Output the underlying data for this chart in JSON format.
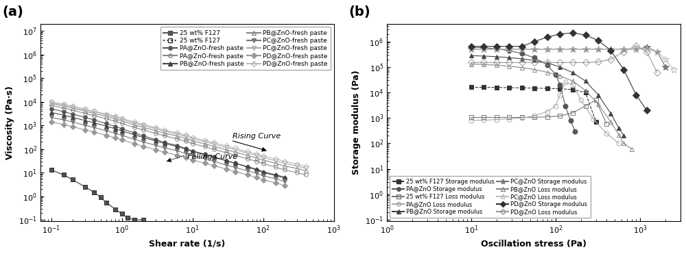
{
  "fig_width": 10.0,
  "fig_height": 3.71,
  "background_color": "#ffffff",
  "panel_a": {
    "xlabel": "Shear rate (1/s)",
    "ylabel": "Viscosity (Pa·s)",
    "xlim": [
      0.07,
      1000
    ],
    "ylim": [
      0.09,
      20000000.0
    ],
    "series": [
      {
        "label": "25 wt% F127 falling",
        "marker": "s",
        "filled": true,
        "linestyle": "-",
        "color": "#555555",
        "x": [
          0.1,
          0.15,
          0.2,
          0.3,
          0.4,
          0.5,
          0.6,
          0.8,
          1.0,
          1.2,
          1.5,
          2.0
        ],
        "y": [
          13,
          8,
          5,
          2.5,
          1.5,
          0.9,
          0.55,
          0.28,
          0.18,
          0.12,
          0.1,
          0.1
        ]
      },
      {
        "label": "25 wt% F127 rising",
        "marker": "s",
        "filled": false,
        "linestyle": ":",
        "color": "#333333",
        "x": [
          0.1,
          0.15,
          0.2,
          0.3,
          0.4,
          0.5,
          0.6,
          0.8,
          1.0,
          1.2,
          1.5,
          2.0
        ],
        "y": [
          13,
          8,
          5,
          2.5,
          1.5,
          0.9,
          0.55,
          0.28,
          0.18,
          0.12,
          0.1,
          0.1
        ]
      },
      {
        "label": "PA@ZnO-fresh paste falling",
        "marker": "o",
        "filled": true,
        "linestyle": "-",
        "color": "#555555",
        "x": [
          0.1,
          0.15,
          0.2,
          0.3,
          0.4,
          0.6,
          0.8,
          1.0,
          1.5,
          2.0,
          3.0,
          4.0,
          6.0,
          8.0,
          10,
          15,
          20,
          30,
          40,
          60,
          80,
          100,
          150,
          200
        ],
        "y": [
          5000,
          3800,
          3000,
          2200,
          1700,
          1200,
          900,
          720,
          480,
          360,
          250,
          190,
          140,
          105,
          82,
          60,
          46,
          32,
          25,
          17,
          13,
          10,
          7.5,
          5.8
        ]
      },
      {
        "label": "PA@ZnO-fresh paste rising",
        "marker": "o",
        "filled": false,
        "linestyle": "-",
        "color": "#888888",
        "x": [
          0.1,
          0.15,
          0.2,
          0.3,
          0.4,
          0.6,
          0.8,
          1.0,
          1.5,
          2.0,
          3.0,
          4.0,
          6.0,
          8.0,
          10,
          15,
          20,
          30,
          40,
          60,
          80,
          100,
          150,
          200,
          300,
          400
        ],
        "y": [
          7000,
          5500,
          4400,
          3200,
          2600,
          1900,
          1500,
          1200,
          820,
          640,
          460,
          360,
          270,
          210,
          168,
          124,
          97,
          69,
          54,
          38,
          30,
          24,
          17,
          13,
          10,
          8
        ]
      },
      {
        "label": "PB@ZnO-fresh paste falling",
        "marker": "^",
        "filled": true,
        "linestyle": "-",
        "color": "#444444",
        "x": [
          0.1,
          0.15,
          0.2,
          0.3,
          0.4,
          0.6,
          0.8,
          1.0,
          1.5,
          2.0,
          3.0,
          4.0,
          6.0,
          8.0,
          10,
          15,
          20,
          30,
          40,
          60,
          80,
          100,
          150,
          200
        ],
        "y": [
          3500,
          2700,
          2200,
          1600,
          1300,
          930,
          730,
          590,
          400,
          310,
          220,
          172,
          128,
          99,
          79,
          58,
          45,
          32,
          25,
          18,
          14,
          11,
          8,
          6.5
        ]
      },
      {
        "label": "PB@ZnO-fresh paste rising",
        "marker": "^",
        "filled": false,
        "linestyle": "-",
        "color": "#888888",
        "x": [
          0.1,
          0.15,
          0.2,
          0.3,
          0.4,
          0.6,
          0.8,
          1.0,
          1.5,
          2.0,
          3.0,
          4.0,
          6.0,
          8.0,
          10,
          15,
          20,
          30,
          40,
          60,
          80,
          100,
          150,
          200,
          300,
          400
        ],
        "y": [
          8500,
          6700,
          5400,
          4000,
          3200,
          2400,
          1900,
          1540,
          1060,
          830,
          600,
          470,
          355,
          278,
          222,
          164,
          130,
          93,
          74,
          53,
          42,
          34,
          25,
          19,
          15,
          12
        ]
      },
      {
        "label": "PC@ZnO-fresh paste falling",
        "marker": "v",
        "filled": true,
        "linestyle": "-",
        "color": "#777777",
        "x": [
          0.1,
          0.15,
          0.2,
          0.3,
          0.4,
          0.6,
          0.8,
          1.0,
          1.5,
          2.0,
          3.0,
          4.0,
          6.0,
          8.0,
          10,
          15,
          20,
          30,
          40,
          60,
          80,
          100,
          150,
          200
        ],
        "y": [
          2200,
          1700,
          1380,
          1010,
          820,
          590,
          465,
          378,
          258,
          200,
          143,
          112,
          84,
          65,
          52,
          38,
          30,
          21,
          16.5,
          12,
          9.3,
          7.3,
          5.5,
          4.2
        ]
      },
      {
        "label": "PC@ZnO-fresh paste rising",
        "marker": "v",
        "filled": false,
        "linestyle": "-",
        "color": "#aaaaaa",
        "x": [
          0.1,
          0.15,
          0.2,
          0.3,
          0.4,
          0.6,
          0.8,
          1.0,
          1.5,
          2.0,
          3.0,
          4.0,
          6.0,
          8.0,
          10,
          15,
          20,
          30,
          40,
          60,
          80,
          100,
          150,
          200,
          300,
          400
        ],
        "y": [
          9500,
          7600,
          6200,
          4600,
          3750,
          2800,
          2240,
          1820,
          1270,
          995,
          724,
          569,
          432,
          340,
          273,
          203,
          161,
          117,
          93,
          67,
          53,
          43,
          32,
          25,
          19,
          15
        ]
      },
      {
        "label": "PD@ZnO-fresh paste falling",
        "marker": "D",
        "filled": true,
        "linestyle": "-",
        "color": "#999999",
        "x": [
          0.1,
          0.15,
          0.2,
          0.3,
          0.4,
          0.6,
          0.8,
          1.0,
          1.5,
          2.0,
          3.0,
          4.0,
          6.0,
          8.0,
          10,
          15,
          20,
          30,
          40,
          60,
          80,
          100,
          150,
          200
        ],
        "y": [
          1400,
          1080,
          880,
          645,
          525,
          379,
          299,
          244,
          167,
          130,
          93,
          73,
          55,
          43,
          34,
          25,
          20,
          14,
          11,
          8,
          6.2,
          4.9,
          3.7,
          2.8
        ]
      },
      {
        "label": "PD@ZnO-fresh paste rising",
        "marker": "D",
        "filled": false,
        "linestyle": "-",
        "color": "#bbbbbb",
        "x": [
          0.1,
          0.15,
          0.2,
          0.3,
          0.4,
          0.6,
          0.8,
          1.0,
          1.5,
          2.0,
          3.0,
          4.0,
          6.0,
          8.0,
          10,
          15,
          20,
          30,
          40,
          60,
          80,
          100,
          150,
          200,
          300,
          400
        ],
        "y": [
          9800,
          7900,
          6500,
          4900,
          4000,
          3020,
          2440,
          1990,
          1400,
          1100,
          805,
          636,
          486,
          385,
          310,
          231,
          184,
          135,
          108,
          78,
          62,
          51,
          38,
          30,
          23,
          18
        ]
      }
    ]
  },
  "panel_b": {
    "xlabel": "Oscillation stress (Pa)",
    "ylabel": "Storage modulus (Pa)",
    "xlim": [
      1,
      3000
    ],
    "ylim": [
      0.09,
      5000000.0
    ],
    "series": [
      {
        "label": "25 wt% F127 Storage modulus",
        "marker": "s",
        "filled": true,
        "linestyle": "--",
        "color": "#333333",
        "x": [
          10,
          14,
          20,
          28,
          40,
          56,
          80,
          113,
          160,
          226,
          300
        ],
        "y": [
          16000,
          16000,
          15800,
          15500,
          15200,
          14800,
          14500,
          14000,
          13000,
          10000,
          700
        ]
      },
      {
        "label": "25 wt% F127 Loss modulus",
        "marker": "s",
        "filled": false,
        "linestyle": "-",
        "color": "#777777",
        "x": [
          10,
          14,
          20,
          28,
          40,
          56,
          80,
          113,
          160,
          226,
          300,
          400
        ],
        "y": [
          1050,
          1050,
          1050,
          1050,
          1050,
          1050,
          1100,
          1200,
          1600,
          3000,
          5000,
          600
        ]
      },
      {
        "label": "PA@ZnO Storage modulus",
        "marker": "o",
        "filled": true,
        "linestyle": "-",
        "color": "#555555",
        "x": [
          10,
          14,
          20,
          28,
          40,
          56,
          80,
          100,
          113,
          130,
          150,
          170
        ],
        "y": [
          600000,
          580000,
          520000,
          440000,
          340000,
          230000,
          120000,
          50000,
          20000,
          3000,
          800,
          300
        ]
      },
      {
        "label": "PA@ZnO Loss modulus",
        "marker": "o",
        "filled": false,
        "linestyle": "-",
        "color": "#aaaaaa",
        "x": [
          10,
          14,
          20,
          28,
          40,
          56,
          80,
          100,
          113,
          130,
          160,
          200,
          280,
          400,
          560
        ],
        "y": [
          800,
          820,
          860,
          920,
          1000,
          1200,
          1800,
          3000,
          8000,
          25000,
          20000,
          5000,
          900,
          250,
          100
        ]
      },
      {
        "label": "PB@ZnO Storage modulus",
        "marker": "^",
        "filled": true,
        "linestyle": "-",
        "color": "#444444",
        "x": [
          10,
          14,
          20,
          28,
          40,
          56,
          80,
          113,
          160,
          226,
          320,
          450,
          560,
          640
        ],
        "y": [
          280000,
          270000,
          255000,
          235000,
          210000,
          180000,
          145000,
          100000,
          60000,
          28000,
          8000,
          1500,
          400,
          200
        ]
      },
      {
        "label": "PB@ZnO Loss modulus",
        "marker": "^",
        "filled": false,
        "linestyle": "-",
        "color": "#888888",
        "x": [
          10,
          14,
          20,
          28,
          40,
          56,
          80,
          113,
          160,
          226,
          320,
          450,
          560,
          640,
          800
        ],
        "y": [
          130000,
          125000,
          118000,
          108000,
          95000,
          80000,
          62000,
          45000,
          28000,
          12000,
          3500,
          700,
          220,
          100,
          60
        ]
      },
      {
        "label": "PC@ZnO Storage modulus",
        "marker": "*",
        "filled": true,
        "linestyle": "-",
        "color": "#777777",
        "x": [
          10,
          14,
          20,
          28,
          40,
          56,
          80,
          113,
          160,
          226,
          320,
          450,
          640,
          900,
          1200,
          1600,
          2000
        ],
        "y": [
          500000,
          500000,
          500000,
          500000,
          500000,
          500000,
          500000,
          500000,
          500000,
          500000,
          500000,
          500000,
          500000,
          500000,
          600000,
          400000,
          100000
        ]
      },
      {
        "label": "PC@ZnO Loss modulus",
        "marker": "*",
        "filled": false,
        "linestyle": "-",
        "color": "#bbbbbb",
        "x": [
          10,
          14,
          20,
          28,
          40,
          56,
          80,
          113,
          160,
          226,
          320,
          450,
          640,
          900,
          1200,
          1600,
          2000,
          2500
        ],
        "y": [
          500000,
          500000,
          500000,
          500000,
          500000,
          500000,
          500000,
          500000,
          500000,
          500000,
          500000,
          500000,
          500000,
          500000,
          500000,
          400000,
          200000,
          80000
        ]
      },
      {
        "label": "PD@ZnO Storage modulus",
        "marker": "D",
        "filled": true,
        "linestyle": "-",
        "color": "#333333",
        "x": [
          10,
          14,
          20,
          28,
          40,
          56,
          80,
          113,
          160,
          226,
          320,
          450,
          640,
          900,
          1200
        ],
        "y": [
          650000,
          650000,
          650000,
          650000,
          650000,
          1000000,
          1500000,
          2000000,
          2200000,
          1800000,
          1100000,
          450000,
          80000,
          8000,
          2000
        ]
      },
      {
        "label": "PD@ZnO Loss modulus",
        "marker": "D",
        "filled": false,
        "linestyle": "-",
        "color": "#999999",
        "x": [
          10,
          14,
          20,
          28,
          40,
          56,
          80,
          113,
          160,
          226,
          320,
          450,
          640,
          900,
          1200,
          1600
        ],
        "y": [
          150000,
          150000,
          150000,
          150000,
          150000,
          150000,
          150000,
          150000,
          150000,
          150000,
          160000,
          200000,
          400000,
          700000,
          400000,
          60000
        ]
      }
    ]
  }
}
